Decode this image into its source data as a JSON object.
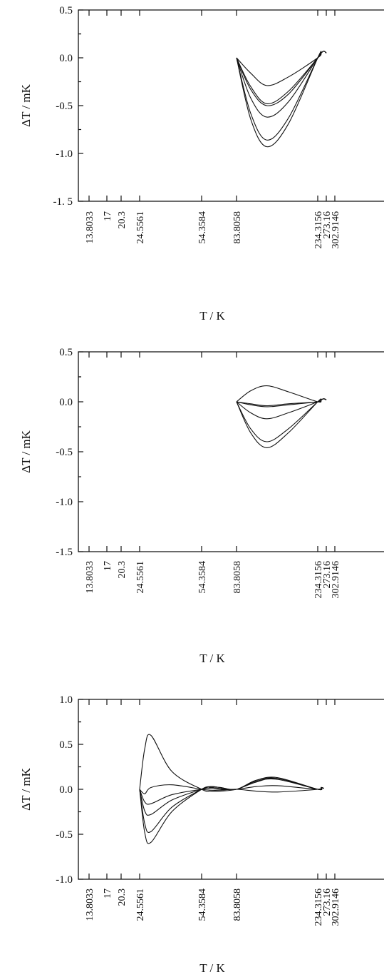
{
  "chart_data": [
    {
      "type": "line",
      "title": "",
      "xlabel": "T / K",
      "ylabel": "ΔT / mK",
      "ylim": [
        -1.5,
        0.5
      ],
      "y_ticks": [
        "0.5",
        "0.0",
        "-0.5",
        "-1.0",
        "-1. 5"
      ],
      "x_tick_labels": [
        "13.8033",
        "17",
        "20.3",
        "24.5561",
        "54.3584",
        "83.8058",
        "234.3156",
        "273.16",
        "302.9146"
      ],
      "x_ticks": [
        13.8033,
        17,
        20.3,
        24.5561,
        54.3584,
        83.8058,
        234.3156,
        273.16,
        302.9146
      ],
      "grid": false,
      "legend": "none",
      "series": [
        {
          "x": [
            83.8058,
            110,
            140,
            180,
            234.3156,
            250,
            262,
            273.16
          ],
          "values": [
            0.0,
            -0.16,
            -0.29,
            -0.2,
            0.0,
            0.05,
            0.07,
            0.05
          ]
        },
        {
          "x": [
            83.8058,
            110,
            140,
            180,
            234.3156,
            250,
            262,
            273.16
          ],
          "values": [
            0.0,
            -0.3,
            -0.48,
            -0.35,
            0.0,
            0.05,
            0.07,
            0.05
          ]
        },
        {
          "x": [
            83.8058,
            110,
            140,
            180,
            234.3156,
            250,
            262,
            273.16
          ],
          "values": [
            0.0,
            -0.33,
            -0.5,
            -0.38,
            0.0,
            0.05,
            0.07,
            0.05
          ]
        },
        {
          "x": [
            83.8058,
            110,
            140,
            180,
            234.3156,
            250,
            262,
            273.16
          ],
          "values": [
            0.0,
            -0.42,
            -0.62,
            -0.46,
            0.0,
            0.05,
            0.07,
            0.05
          ]
        },
        {
          "x": [
            83.8058,
            110,
            140,
            180,
            234.3156,
            250,
            262,
            273.16
          ],
          "values": [
            0.0,
            -0.58,
            -0.86,
            -0.63,
            0.0,
            0.05,
            0.07,
            0.05
          ]
        },
        {
          "x": [
            83.8058,
            110,
            140,
            180,
            234.3156,
            250,
            262,
            273.16
          ],
          "values": [
            0.0,
            -0.64,
            -0.93,
            -0.69,
            0.0,
            0.05,
            0.07,
            0.05
          ]
        }
      ]
    },
    {
      "type": "line",
      "title": "",
      "xlabel": "T / K",
      "ylabel": "ΔT / mK",
      "ylim": [
        -1.5,
        0.5
      ],
      "y_ticks": [
        "0.5",
        "0.0",
        "-0.5",
        "-1.0",
        "-1.5"
      ],
      "x_tick_labels": [
        "13.8033",
        "17",
        "20.3",
        "24.5561",
        "54.3584",
        "83.8058",
        "234.3156",
        "273.16",
        "302.9146"
      ],
      "x_ticks": [
        13.8033,
        17,
        20.3,
        24.5561,
        54.3584,
        83.8058,
        234.3156,
        273.16,
        302.9146
      ],
      "grid": false,
      "legend": "none",
      "series": [
        {
          "x": [
            83.8058,
            110,
            140,
            180,
            234.3156,
            250,
            262,
            273.16
          ],
          "values": [
            0.0,
            0.11,
            0.16,
            0.1,
            0.0,
            0.02,
            0.03,
            0.02
          ]
        },
        {
          "x": [
            83.8058,
            110,
            140,
            180,
            234.3156,
            250,
            262,
            273.16
          ],
          "values": [
            0.0,
            -0.02,
            -0.04,
            -0.02,
            0.0,
            0.02,
            0.03,
            0.02
          ]
        },
        {
          "x": [
            83.8058,
            110,
            140,
            180,
            234.3156,
            250,
            262,
            273.16
          ],
          "values": [
            0.0,
            -0.03,
            -0.05,
            -0.03,
            0.0,
            0.02,
            0.03,
            0.02
          ]
        },
        {
          "x": [
            83.8058,
            110,
            140,
            180,
            234.3156,
            250,
            262,
            273.16
          ],
          "values": [
            0.0,
            -0.11,
            -0.17,
            -0.11,
            0.0,
            0.02,
            0.03,
            0.02
          ]
        },
        {
          "x": [
            83.8058,
            110,
            140,
            180,
            234.3156,
            250,
            262,
            273.16
          ],
          "values": [
            0.0,
            -0.27,
            -0.4,
            -0.27,
            0.0,
            0.02,
            0.03,
            0.02
          ]
        },
        {
          "x": [
            83.8058,
            110,
            140,
            180,
            234.3156,
            250,
            262,
            273.16
          ],
          "values": [
            0.0,
            -0.31,
            -0.46,
            -0.31,
            0.0,
            0.02,
            0.03,
            0.02
          ]
        }
      ]
    },
    {
      "type": "line",
      "title": "",
      "xlabel": "T / K",
      "ylabel": "ΔT / mK",
      "ylim": [
        -1.0,
        1.0
      ],
      "y_ticks": [
        "1.0",
        "0.5",
        "0.0",
        "-0.5",
        "-1.0"
      ],
      "x_tick_labels": [
        "13.8033",
        "17",
        "20.3",
        "24.5561",
        "54.3584",
        "83.8058",
        "234.3156",
        "273.16",
        "302.9146"
      ],
      "x_ticks": [
        13.8033,
        17,
        20.3,
        24.5561,
        54.3584,
        83.8058,
        234.3156,
        273.16,
        302.9146
      ],
      "grid": false,
      "legend": "none",
      "series": [
        {
          "x": [
            24.5561,
            27,
            30,
            40,
            54.3584,
            62,
            70,
            83.8058,
            120,
            160,
            234.3156,
            250,
            262
          ],
          "values": [
            0.0,
            0.45,
            0.6,
            0.2,
            0.0,
            -0.02,
            -0.02,
            0.0,
            0.08,
            0.12,
            0.0,
            0.02,
            0.01
          ]
        },
        {
          "x": [
            24.5561,
            27,
            30,
            40,
            54.3584,
            62,
            70,
            83.8058,
            120,
            160,
            234.3156,
            250,
            262
          ],
          "values": [
            0.0,
            -0.05,
            0.02,
            0.05,
            0.0,
            -0.01,
            -0.01,
            0.0,
            -0.02,
            -0.03,
            0.0,
            0.02,
            0.01
          ]
        },
        {
          "x": [
            24.5561,
            27,
            30,
            40,
            54.3584,
            62,
            70,
            83.8058,
            120,
            160,
            234.3156,
            250,
            262
          ],
          "values": [
            0.0,
            -0.14,
            -0.16,
            -0.06,
            0.0,
            0.01,
            0.0,
            0.0,
            0.03,
            0.04,
            0.0,
            0.02,
            0.01
          ]
        },
        {
          "x": [
            24.5561,
            27,
            30,
            40,
            54.3584,
            62,
            70,
            83.8058,
            120,
            160,
            234.3156,
            250,
            262
          ],
          "values": [
            0.0,
            -0.24,
            -0.28,
            -0.12,
            0.0,
            0.03,
            0.02,
            0.0,
            0.1,
            0.13,
            0.0,
            0.02,
            0.01
          ]
        },
        {
          "x": [
            24.5561,
            27,
            30,
            40,
            54.3584,
            62,
            70,
            83.8058,
            120,
            160,
            234.3156,
            250,
            262
          ],
          "values": [
            0.0,
            -0.38,
            -0.47,
            -0.2,
            0.0,
            0.03,
            0.02,
            0.0,
            0.1,
            0.12,
            0.0,
            0.02,
            0.01
          ]
        },
        {
          "x": [
            24.5561,
            27,
            30,
            40,
            54.3584,
            62,
            70,
            83.8058,
            120,
            160,
            234.3156,
            250,
            262
          ],
          "values": [
            0.0,
            -0.48,
            -0.59,
            -0.25,
            0.0,
            0.02,
            0.01,
            0.0,
            0.09,
            0.11,
            0.0,
            0.02,
            0.01
          ]
        }
      ]
    }
  ]
}
